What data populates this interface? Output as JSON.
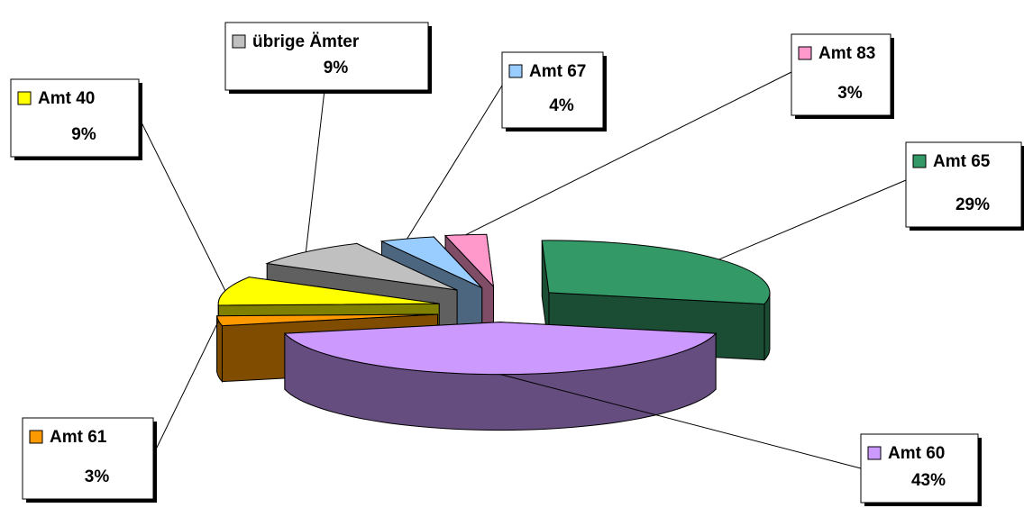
{
  "chart_data": {
    "type": "pie",
    "categories": [
      "Amt 60",
      "Amt 65",
      "Amt 83",
      "Amt 67",
      "übrige Ämter",
      "Amt 40",
      "Amt 61"
    ],
    "values": [
      43,
      29,
      3,
      4,
      9,
      9,
      3
    ],
    "value_labels": [
      "43%",
      "29%",
      "3%",
      "4%",
      "9%",
      "9%",
      "3%"
    ],
    "colors": [
      "#cc99ff",
      "#339966",
      "#ff99cc",
      "#99ccff",
      "#c0c0c0",
      "#ffff00",
      "#ff9900"
    ]
  }
}
